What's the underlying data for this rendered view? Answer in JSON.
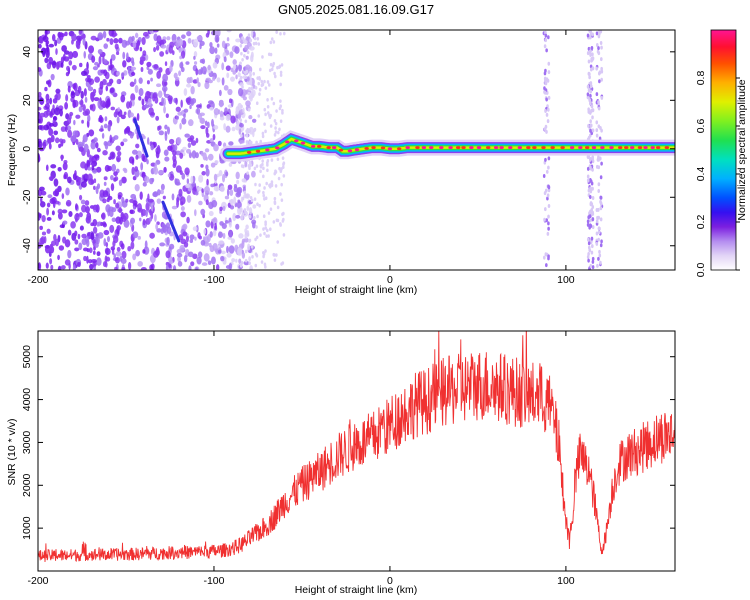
{
  "title": "GN05.2025.081.16.09.G17",
  "chart_data": [
    {
      "type": "heatmap",
      "description_kind": "spectrogram",
      "xlabel": "Height of straight line (km)",
      "ylabel": "Frequency (Hz)",
      "xlim": [
        -200,
        162
      ],
      "ylim": [
        -50,
        49
      ],
      "xticks": [
        -200,
        -100,
        0,
        100
      ],
      "yticks": [
        -40,
        -20,
        0,
        20,
        40
      ],
      "grid": false,
      "colorbar": {
        "label": "Normalized spectral amplitude",
        "range": [
          0,
          1
        ],
        "ticks": [
          0.0,
          0.2,
          0.4,
          0.6,
          0.8
        ],
        "colormap": [
          "#ffffff",
          "#e6d8f5",
          "#b48cf0",
          "#7b1fe0",
          "#3b10f0",
          "#0060ff",
          "#00b0ff",
          "#00e0d0",
          "#20e060",
          "#80f020",
          "#e0f000",
          "#ffb000",
          "#ff5000",
          "#ff1030",
          "#ff1493"
        ]
      },
      "signal_track": {
        "x": [
          -92,
          -85,
          -75,
          -65,
          -60,
          -56,
          -52,
          -48,
          -44,
          -40,
          -35,
          -30,
          -27,
          -24,
          -20,
          -15,
          -10,
          -5,
          0,
          5,
          10,
          20,
          30,
          40,
          60,
          80,
          100,
          120,
          140,
          162
        ],
        "y": [
          -2,
          -2,
          -1,
          0,
          2,
          4,
          3,
          2,
          1,
          1,
          0.5,
          0.5,
          -1,
          -1,
          -0.5,
          0,
          0.5,
          0.5,
          0,
          0,
          0.5,
          0.5,
          0.5,
          0.5,
          0.5,
          0.5,
          0.5,
          0.5,
          0.5,
          0.5
        ]
      },
      "noise_region_x": [
        -200,
        -85
      ]
    },
    {
      "type": "line",
      "xlabel": "Height of straight line (km)",
      "ylabel": "SNR (10 * v/v)",
      "xlim": [
        -200,
        162
      ],
      "ylim": [
        0,
        5600
      ],
      "xticks": [
        -200,
        -100,
        0,
        100
      ],
      "yticks": [
        1000,
        2000,
        3000,
        4000,
        5000
      ],
      "grid": false,
      "color": "#f03030",
      "series": [
        {
          "x": [
            -200,
            -190,
            -180,
            -170,
            -160,
            -150,
            -140,
            -130,
            -120,
            -110,
            -100,
            -95,
            -90,
            -85,
            -80,
            -75,
            -70,
            -65,
            -60,
            -55,
            -50,
            -45,
            -40,
            -35,
            -30,
            -25,
            -20,
            -15,
            -10,
            -5,
            0,
            5,
            10,
            15,
            20,
            25,
            30,
            35,
            40,
            45,
            50,
            55,
            60,
            65,
            70,
            75,
            80,
            85,
            90,
            93,
            96,
            98,
            100,
            102,
            104,
            106,
            108,
            110,
            112,
            114,
            116,
            118,
            120,
            122,
            124,
            126,
            128,
            130,
            135,
            140,
            145,
            150,
            155,
            160,
            162
          ],
          "values": [
            350,
            360,
            370,
            380,
            380,
            390,
            400,
            420,
            430,
            440,
            460,
            480,
            520,
            600,
            750,
            900,
            1050,
            1300,
            1600,
            1800,
            2000,
            2150,
            2300,
            2500,
            2650,
            2800,
            2950,
            3000,
            3100,
            3250,
            3400,
            3600,
            3750,
            3900,
            3950,
            4050,
            4150,
            4200,
            4250,
            4300,
            4350,
            4350,
            4300,
            4250,
            4200,
            4150,
            4100,
            4050,
            3900,
            3600,
            2900,
            2000,
            1200,
            700,
            1400,
            2300,
            2700,
            2600,
            2400,
            2100,
            1700,
            1100,
            500,
            700,
            1200,
            1800,
            2200,
            2500,
            2700,
            2800,
            2900,
            3050,
            3150,
            3200,
            3200
          ]
        }
      ]
    }
  ]
}
